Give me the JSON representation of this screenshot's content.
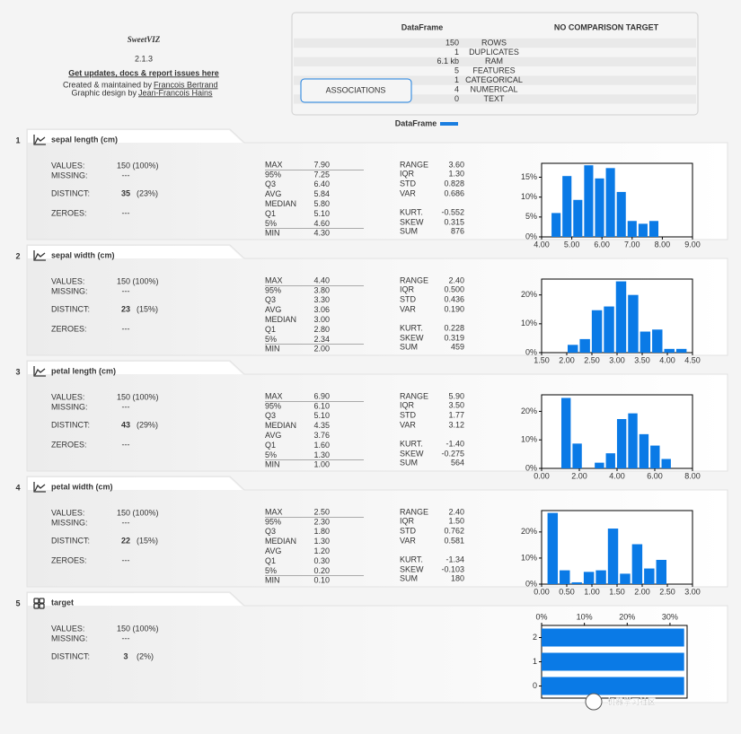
{
  "header": {
    "logo": "SweetVIZ",
    "version": "2.1.3",
    "link": "Get updates, docs & report issues here",
    "credit1": "Created & maintained by",
    "author1": "Francois Bertrand",
    "credit2": "Graphic design by",
    "author2": "Jean-Francois Hains"
  },
  "summary": {
    "title": "DataFrame",
    "compare": "NO COMPARISON TARGET",
    "button": "ASSOCIATIONS",
    "legend": "DataFrame",
    "rows": [
      {
        "value": "150",
        "label": "ROWS"
      },
      {
        "value": "1",
        "label": "DUPLICATES"
      },
      {
        "value": "6.1 kb",
        "label": "RAM"
      },
      {
        "value": "5",
        "label": "FEATURES"
      },
      {
        "value": "1",
        "label": "CATEGORICAL"
      },
      {
        "value": "4",
        "label": "NUMERICAL"
      },
      {
        "value": "0",
        "label": "TEXT"
      }
    ]
  },
  "features": [
    {
      "number": "1",
      "name": "sepal length (cm)",
      "info": [
        {
          "label": "VALUES:",
          "value": "150 (100%)"
        },
        {
          "label": "MISSING:",
          "value": "---"
        },
        {
          "label": "DISTINCT:",
          "value": "35",
          "pct": "(23%)"
        },
        {
          "label": "ZEROES:",
          "value": "---"
        }
      ],
      "quantiles": [
        {
          "label": "MAX",
          "value": "7.90"
        },
        {
          "label": "95%",
          "value": "7.25"
        },
        {
          "label": "Q3",
          "value": "6.40"
        },
        {
          "label": "AVG",
          "value": "5.84"
        },
        {
          "label": "MEDIAN",
          "value": "5.80"
        },
        {
          "label": "Q1",
          "value": "5.10"
        },
        {
          "label": "5%",
          "value": "4.60"
        },
        {
          "label": "MIN",
          "value": "4.30"
        }
      ],
      "stats": [
        {
          "label": "RANGE",
          "value": "3.60"
        },
        {
          "label": "IQR",
          "value": "1.30"
        },
        {
          "label": "STD",
          "value": "0.828"
        },
        {
          "label": "VAR",
          "value": "0.686"
        },
        {
          "label": "KURT.",
          "value": "-0.552"
        },
        {
          "label": "SKEW",
          "value": "0.315"
        },
        {
          "label": "SUM",
          "value": "876"
        }
      ],
      "chart": {
        "type": "histogram",
        "color": "#0a7ae6",
        "bins": [
          4.3,
          4.66,
          5.02,
          5.38,
          5.74,
          6.1,
          6.46,
          6.82,
          7.18,
          7.54,
          7.9
        ],
        "values": [
          6,
          15.3,
          9.3,
          18,
          14.7,
          17.3,
          11.3,
          4,
          3.3,
          4
        ],
        "xlim": [
          4,
          9
        ],
        "ylim": [
          0,
          18.5
        ],
        "xticks": [
          {
            "value": 4,
            "label": "4.00"
          },
          {
            "value": 5,
            "label": "5.00"
          },
          {
            "value": 6,
            "label": "6.00"
          },
          {
            "value": 7,
            "label": "7.00"
          },
          {
            "value": 8,
            "label": "8.00"
          },
          {
            "value": 9,
            "label": "9.00"
          }
        ],
        "yticks": [
          {
            "value": 0,
            "label": "0%"
          },
          {
            "value": 5,
            "label": "5%"
          },
          {
            "value": 10,
            "label": "10%"
          },
          {
            "value": 15,
            "label": "15%"
          }
        ]
      }
    },
    {
      "number": "2",
      "name": "sepal width (cm)",
      "info": [
        {
          "label": "VALUES:",
          "value": "150 (100%)"
        },
        {
          "label": "MISSING:",
          "value": "---"
        },
        {
          "label": "DISTINCT:",
          "value": "23",
          "pct": "(15%)"
        },
        {
          "label": "ZEROES:",
          "value": "---"
        }
      ],
      "quantiles": [
        {
          "label": "MAX",
          "value": "4.40"
        },
        {
          "label": "95%",
          "value": "3.80"
        },
        {
          "label": "Q3",
          "value": "3.30"
        },
        {
          "label": "AVG",
          "value": "3.06"
        },
        {
          "label": "MEDIAN",
          "value": "3.00"
        },
        {
          "label": "Q1",
          "value": "2.80"
        },
        {
          "label": "5%",
          "value": "2.34"
        },
        {
          "label": "MIN",
          "value": "2.00"
        }
      ],
      "stats": [
        {
          "label": "RANGE",
          "value": "2.40"
        },
        {
          "label": "IQR",
          "value": "0.500"
        },
        {
          "label": "STD",
          "value": "0.436"
        },
        {
          "label": "VAR",
          "value": "0.190"
        },
        {
          "label": "KURT.",
          "value": "0.228"
        },
        {
          "label": "SKEW",
          "value": "0.319"
        },
        {
          "label": "SUM",
          "value": "459"
        }
      ],
      "chart": {
        "type": "histogram",
        "color": "#0a7ae6",
        "bins": [
          2,
          2.24,
          2.48,
          2.72,
          2.96,
          3.2,
          3.44,
          3.68,
          3.92,
          4.16,
          4.4
        ],
        "values": [
          2.7,
          4.7,
          14.7,
          16,
          24.7,
          20,
          7.3,
          8,
          1.3,
          1.3
        ],
        "xlim": [
          1.5,
          4.5
        ],
        "ylim": [
          0,
          25.5
        ],
        "xticks": [
          {
            "value": 1.5,
            "label": "1.50"
          },
          {
            "value": 2,
            "label": "2.00"
          },
          {
            "value": 2.5,
            "label": "2.50"
          },
          {
            "value": 3,
            "label": "3.00"
          },
          {
            "value": 3.5,
            "label": "3.50"
          },
          {
            "value": 4,
            "label": "4.00"
          },
          {
            "value": 4.5,
            "label": "4.50"
          }
        ],
        "yticks": [
          {
            "value": 0,
            "label": "0%"
          },
          {
            "value": 10,
            "label": "10%"
          },
          {
            "value": 20,
            "label": "20%"
          }
        ]
      }
    },
    {
      "number": "3",
      "name": "petal length (cm)",
      "info": [
        {
          "label": "VALUES:",
          "value": "150 (100%)"
        },
        {
          "label": "MISSING:",
          "value": "---"
        },
        {
          "label": "DISTINCT:",
          "value": "43",
          "pct": "(29%)"
        },
        {
          "label": "ZEROES:",
          "value": "---"
        }
      ],
      "quantiles": [
        {
          "label": "MAX",
          "value": "6.90"
        },
        {
          "label": "95%",
          "value": "6.10"
        },
        {
          "label": "Q3",
          "value": "5.10"
        },
        {
          "label": "MEDIAN",
          "value": "4.35"
        },
        {
          "label": "AVG",
          "value": "3.76"
        },
        {
          "label": "Q1",
          "value": "1.60"
        },
        {
          "label": "5%",
          "value": "1.30"
        },
        {
          "label": "MIN",
          "value": "1.00"
        }
      ],
      "stats": [
        {
          "label": "RANGE",
          "value": "5.90"
        },
        {
          "label": "IQR",
          "value": "3.50"
        },
        {
          "label": "STD",
          "value": "1.77"
        },
        {
          "label": "VAR",
          "value": "3.12"
        },
        {
          "label": "KURT.",
          "value": "-1.40"
        },
        {
          "label": "SKEW",
          "value": "-0.275"
        },
        {
          "label": "SUM",
          "value": "564"
        }
      ],
      "chart": {
        "type": "histogram",
        "color": "#0a7ae6",
        "bins": [
          1,
          1.59,
          2.18,
          2.77,
          3.36,
          3.95,
          4.54,
          5.13,
          5.72,
          6.31,
          6.9
        ],
        "values": [
          24.7,
          8.7,
          0,
          2,
          5.3,
          17.3,
          19.3,
          12,
          8,
          3.3
        ],
        "xlim": [
          0,
          8
        ],
        "ylim": [
          0,
          25.8
        ],
        "xticks": [
          {
            "value": 0,
            "label": "0.00"
          },
          {
            "value": 2,
            "label": "2.00"
          },
          {
            "value": 4,
            "label": "4.00"
          },
          {
            "value": 6,
            "label": "6.00"
          },
          {
            "value": 8,
            "label": "8.00"
          }
        ],
        "yticks": [
          {
            "value": 0,
            "label": "0%"
          },
          {
            "value": 10,
            "label": "10%"
          },
          {
            "value": 20,
            "label": "20%"
          }
        ]
      }
    },
    {
      "number": "4",
      "name": "petal width (cm)",
      "info": [
        {
          "label": "VALUES:",
          "value": "150 (100%)"
        },
        {
          "label": "MISSING:",
          "value": "---"
        },
        {
          "label": "DISTINCT:",
          "value": "22",
          "pct": "(15%)"
        },
        {
          "label": "ZEROES:",
          "value": "---"
        }
      ],
      "quantiles": [
        {
          "label": "MAX",
          "value": "2.50"
        },
        {
          "label": "95%",
          "value": "2.30"
        },
        {
          "label": "Q3",
          "value": "1.80"
        },
        {
          "label": "MEDIAN",
          "value": "1.30"
        },
        {
          "label": "AVG",
          "value": "1.20"
        },
        {
          "label": "Q1",
          "value": "0.30"
        },
        {
          "label": "5%",
          "value": "0.20"
        },
        {
          "label": "MIN",
          "value": "0.10"
        }
      ],
      "stats": [
        {
          "label": "RANGE",
          "value": "2.40"
        },
        {
          "label": "IQR",
          "value": "1.50"
        },
        {
          "label": "STD",
          "value": "0.762"
        },
        {
          "label": "VAR",
          "value": "0.581"
        },
        {
          "label": "KURT.",
          "value": "-1.34"
        },
        {
          "label": "SKEW",
          "value": "-0.103"
        },
        {
          "label": "SUM",
          "value": "180"
        }
      ],
      "chart": {
        "type": "histogram",
        "color": "#0a7ae6",
        "bins": [
          0.1,
          0.34,
          0.58,
          0.82,
          1.06,
          1.3,
          1.54,
          1.78,
          2.02,
          2.26,
          2.5
        ],
        "values": [
          27.3,
          5.3,
          0.7,
          4.7,
          5.3,
          21.3,
          4,
          15.3,
          6,
          9.3
        ],
        "xlim": [
          0,
          3
        ],
        "ylim": [
          0,
          28.2
        ],
        "xticks": [
          {
            "value": 0,
            "label": "0.00"
          },
          {
            "value": 0.5,
            "label": "0.50"
          },
          {
            "value": 1,
            "label": "1.00"
          },
          {
            "value": 1.5,
            "label": "1.50"
          },
          {
            "value": 2,
            "label": "2.00"
          },
          {
            "value": 2.5,
            "label": "2.50"
          },
          {
            "value": 3,
            "label": "3.00"
          }
        ],
        "yticks": [
          {
            "value": 0,
            "label": "0%"
          },
          {
            "value": 10,
            "label": "10%"
          },
          {
            "value": 20,
            "label": "20%"
          }
        ]
      }
    },
    {
      "number": "5",
      "name": "target",
      "info": [
        {
          "label": "VALUES:",
          "value": "150 (100%)"
        },
        {
          "label": "MISSING:",
          "value": "---"
        },
        {
          "label": "DISTINCT:",
          "value": "3",
          "pct": "(2%)"
        }
      ],
      "chart": {
        "type": "hbar",
        "color": "#0a7ae6",
        "categories": [
          "2",
          "1",
          "0"
        ],
        "values": [
          33.3,
          33.3,
          33.3
        ],
        "xlim": [
          0,
          34
        ],
        "xticks": [
          {
            "value": 0,
            "label": "0%"
          },
          {
            "value": 10,
            "label": "10%"
          },
          {
            "value": 20,
            "label": "20%"
          },
          {
            "value": 30,
            "label": "30%"
          }
        ]
      }
    }
  ],
  "watermark": "机器学习社区"
}
